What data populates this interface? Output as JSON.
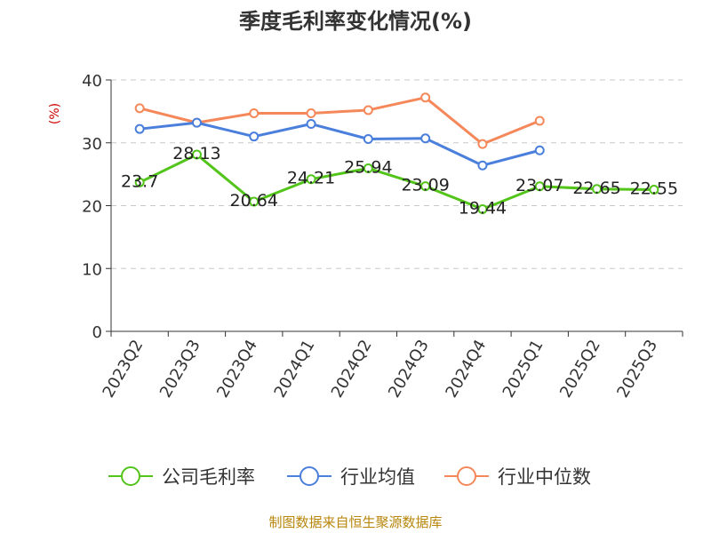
{
  "chart_data": {
    "type": "line",
    "title": "季度毛利率变化情况(%)",
    "ylabel": "(%)",
    "xlabel": "",
    "ylim": [
      0,
      40
    ],
    "yticks": [
      0,
      10,
      20,
      30,
      40
    ],
    "grid": true,
    "legend_position": "bottom",
    "categories": [
      "2023Q2",
      "2023Q3",
      "2023Q4",
      "2024Q1",
      "2024Q2",
      "2024Q3",
      "2024Q4",
      "2025Q1",
      "2025Q2",
      "2025Q3"
    ],
    "series": [
      {
        "name": "公司毛利率",
        "color": "#52c41a",
        "values": [
          23.7,
          28.13,
          20.64,
          24.21,
          25.94,
          23.09,
          19.44,
          23.07,
          22.65,
          22.55
        ],
        "labels": [
          "23.7",
          "28.13",
          "20.64",
          "24.21",
          "25.94",
          "23.09",
          "19.44",
          "23.07",
          "22.65",
          "22.55"
        ]
      },
      {
        "name": "行业均值",
        "color": "#4a7fdc",
        "values": [
          32.2,
          33.2,
          31.0,
          33.0,
          30.6,
          30.7,
          26.4,
          28.8,
          null,
          null
        ]
      },
      {
        "name": "行业中位数",
        "color": "#f5885a",
        "values": [
          35.5,
          33.2,
          34.7,
          34.7,
          35.2,
          37.2,
          29.8,
          33.5,
          null,
          null
        ]
      }
    ],
    "source": "制图数据来自恒生聚源数据库"
  }
}
